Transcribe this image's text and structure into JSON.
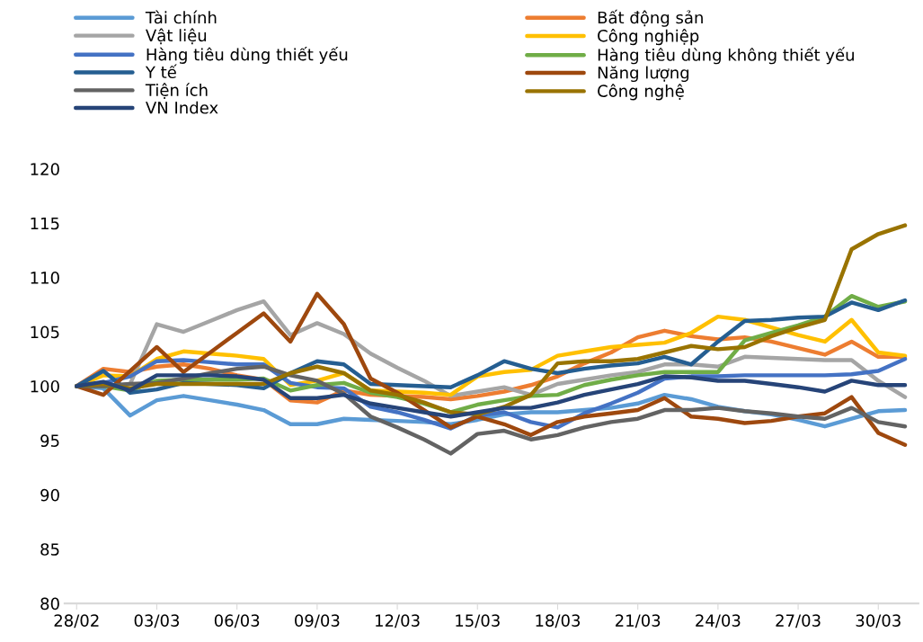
{
  "chart_data": {
    "type": "line",
    "categories": [
      "28/02",
      null,
      null,
      "03/03",
      null,
      null,
      "06/03",
      null,
      null,
      "09/03",
      null,
      null,
      "12/03",
      null,
      null,
      "15/03",
      null,
      null,
      "18/03",
      null,
      null,
      "21/03",
      null,
      null,
      "24/03",
      null,
      null,
      "27/03",
      null,
      null,
      "30/03",
      null
    ],
    "ylim": [
      80,
      120
    ],
    "yticks": [
      80,
      85,
      90,
      95,
      100,
      105,
      110,
      115,
      120
    ],
    "grid": false,
    "legend": "top",
    "marker": "none",
    "line_style": "solid",
    "series": [
      {
        "name": "Tài chính",
        "color": "#5b9bd5",
        "values": [
          100,
          99.8,
          97.3,
          98.7,
          99.1,
          98.7,
          98.3,
          97.8,
          96.5,
          96.5,
          97.0,
          96.9,
          96.8,
          96.7,
          96.5,
          96.9,
          97.4,
          97.6,
          97.6,
          97.8,
          98.0,
          98.4,
          99.2,
          98.8,
          98.1,
          97.7,
          97.4,
          96.9,
          96.3,
          97.0,
          97.7,
          97.8
        ]
      },
      {
        "name": "Bất động sản",
        "color": "#ed7d31",
        "values": [
          100,
          101.6,
          101.3,
          101.8,
          102.0,
          101.6,
          101.0,
          100.6,
          98.7,
          98.5,
          99.6,
          99.2,
          99.1,
          99.0,
          98.8,
          99.1,
          99.5,
          100.1,
          100.9,
          102.1,
          103.1,
          104.5,
          105.1,
          104.6,
          104.3,
          104.5,
          104.1,
          103.5,
          102.9,
          104.1,
          102.7,
          102.7
        ]
      },
      {
        "name": "Vật liệu",
        "color": "#a5a5a5",
        "values": [
          100,
          100.0,
          100.2,
          105.7,
          105.0,
          106.0,
          107.0,
          107.8,
          104.7,
          105.8,
          104.8,
          103.0,
          101.7,
          100.5,
          99.1,
          99.5,
          99.9,
          99.2,
          100.2,
          100.6,
          101.0,
          101.3,
          102.0,
          102.0,
          101.8,
          102.7,
          102.6,
          102.5,
          102.4,
          102.4,
          100.5,
          99.0
        ]
      },
      {
        "name": "Công nghiệp",
        "color": "#ffc000",
        "values": [
          100,
          101.0,
          100.9,
          102.5,
          103.2,
          103.0,
          102.8,
          102.5,
          100.1,
          100.5,
          101.2,
          99.6,
          99.5,
          99.4,
          99.2,
          100.9,
          101.3,
          101.5,
          102.8,
          103.2,
          103.6,
          103.8,
          104.0,
          104.9,
          106.4,
          106.1,
          105.4,
          104.7,
          104.1,
          106.1,
          103.1,
          102.8
        ]
      },
      {
        "name": "Hàng tiêu dùng thiết yếu",
        "color": "#4472c4",
        "values": [
          100,
          100.3,
          100.9,
          102.3,
          102.4,
          102.2,
          102.0,
          102.0,
          100.3,
          99.9,
          99.8,
          98.1,
          97.6,
          96.9,
          96.1,
          97.3,
          97.6,
          96.7,
          96.2,
          97.5,
          98.4,
          99.4,
          100.7,
          100.9,
          100.9,
          101.0,
          101.0,
          101.0,
          101.0,
          101.1,
          101.4,
          102.5
        ]
      },
      {
        "name": "Hàng tiêu dùng không thiết yếu",
        "color": "#70ad47",
        "values": [
          100,
          100.0,
          99.6,
          100.5,
          100.6,
          100.6,
          100.6,
          100.7,
          99.6,
          100.1,
          100.3,
          99.4,
          99.0,
          98.4,
          97.6,
          98.3,
          98.7,
          99.1,
          99.2,
          100.1,
          100.6,
          101.0,
          101.3,
          101.3,
          101.3,
          104.2,
          104.9,
          105.6,
          106.4,
          108.3,
          107.3,
          107.8
        ]
      },
      {
        "name": "Y tế",
        "color": "#255e91",
        "values": [
          100,
          101.4,
          99.4,
          99.7,
          100.3,
          100.2,
          100.1,
          99.8,
          101.2,
          102.3,
          102.0,
          100.2,
          100.1,
          100.0,
          99.9,
          101.0,
          102.3,
          101.6,
          101.2,
          101.6,
          101.9,
          102.1,
          102.7,
          102.0,
          104.1,
          106.0,
          106.1,
          106.3,
          106.4,
          107.7,
          107.0,
          107.9
        ]
      },
      {
        "name": "Năng lượng",
        "color": "#9e480e",
        "values": [
          100,
          99.2,
          101.4,
          103.6,
          101.3,
          103.1,
          104.9,
          106.7,
          104.1,
          108.5,
          105.7,
          100.7,
          99.4,
          97.8,
          96.2,
          97.2,
          96.5,
          95.5,
          96.7,
          97.2,
          97.5,
          97.8,
          98.9,
          97.2,
          97.0,
          96.6,
          96.8,
          97.2,
          97.5,
          99.0,
          95.7,
          94.6
        ]
      },
      {
        "name": "Tiện ích",
        "color": "#636363",
        "values": [
          100,
          100.0,
          100.2,
          100.3,
          100.7,
          101.2,
          101.6,
          101.8,
          101.0,
          100.5,
          99.3,
          97.2,
          96.2,
          95.1,
          93.8,
          95.6,
          95.9,
          95.1,
          95.5,
          96.2,
          96.7,
          97.0,
          97.8,
          97.8,
          98.0,
          97.7,
          97.5,
          97.2,
          97.0,
          98.0,
          96.7,
          96.3
        ]
      },
      {
        "name": "Công nghệ",
        "color": "#997300",
        "values": [
          100,
          100.2,
          99.8,
          100.2,
          100.2,
          100.2,
          100.2,
          100.2,
          101.2,
          101.8,
          101.2,
          99.6,
          99.2,
          98.5,
          97.6,
          97.4,
          98.1,
          99.2,
          102.1,
          102.3,
          102.3,
          102.5,
          103.1,
          103.7,
          103.4,
          103.6,
          104.6,
          105.4,
          106.1,
          112.6,
          114.0,
          114.8
        ]
      },
      {
        "name": "VN Index",
        "color": "#264478",
        "values": [
          100,
          100.4,
          99.6,
          101.0,
          101.0,
          101.0,
          100.9,
          100.6,
          98.9,
          98.9,
          99.2,
          98.4,
          98.0,
          97.6,
          97.2,
          97.6,
          98.0,
          98.0,
          98.5,
          99.2,
          99.7,
          100.2,
          100.9,
          100.8,
          100.5,
          100.5,
          100.2,
          99.9,
          99.5,
          100.5,
          100.1,
          100.1
        ]
      }
    ]
  }
}
